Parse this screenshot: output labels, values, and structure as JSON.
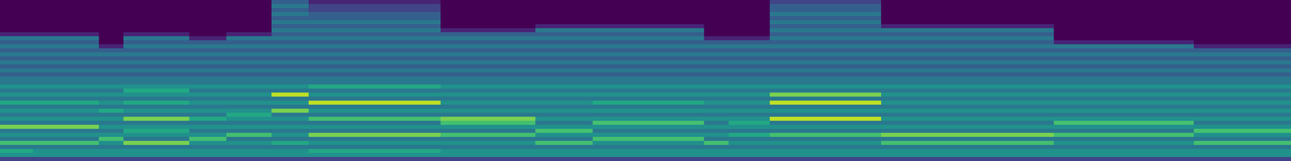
{
  "chart_data": {
    "type": "heatmap",
    "color": "viridis",
    "tick_labels": false,
    "zlim": [
      0,
      10
    ],
    "x": [
      0,
      40,
      120,
      150,
      230,
      275,
      330,
      375,
      535,
      650,
      720,
      855,
      885,
      935,
      1070,
      1280,
      1450,
      1568
    ],
    "cells": [
      [
        0,
        0,
        0,
        0,
        0,
        0,
        0,
        0,
        1,
        4,
        3,
        4,
        3,
        4,
        3,
        4,
        3,
        4,
        3,
        4,
        4,
        5,
        4,
        5,
        4,
        6,
        4,
        5,
        4,
        5,
        4,
        8,
        4,
        5,
        4,
        7,
        4,
        6,
        5,
        2
      ],
      [
        0,
        0,
        0,
        0,
        0,
        0,
        0,
        0,
        1,
        4,
        3,
        4,
        3,
        4,
        3,
        4,
        3,
        4,
        3,
        4,
        4,
        5,
        4,
        5,
        4,
        6,
        4,
        5,
        4,
        5,
        4,
        8,
        4,
        5,
        4,
        7,
        4,
        5,
        5,
        2
      ],
      [
        0,
        0,
        0,
        0,
        0,
        0,
        0,
        0,
        0,
        0,
        0,
        1,
        3,
        4,
        3,
        4,
        3,
        4,
        3,
        4,
        4,
        5,
        4,
        5,
        4,
        5,
        4,
        6,
        4,
        5,
        4,
        5,
        4,
        5,
        7,
        5,
        4,
        5,
        5,
        2
      ],
      [
        0,
        0,
        0,
        0,
        0,
        0,
        0,
        0,
        1,
        4,
        3,
        4,
        3,
        4,
        3,
        4,
        3,
        4,
        3,
        4,
        4,
        5,
        6,
        5,
        4,
        6,
        4,
        5,
        4,
        8,
        4,
        5,
        6,
        5,
        4,
        8,
        4,
        5,
        5,
        2
      ],
      [
        0,
        0,
        0,
        0,
        0,
        0,
        0,
        0,
        0,
        1,
        3,
        4,
        3,
        4,
        3,
        4,
        3,
        4,
        3,
        4,
        4,
        5,
        4,
        5,
        4,
        5,
        4,
        5,
        4,
        6,
        4,
        5,
        4,
        5,
        7,
        5,
        4,
        5,
        5,
        2
      ],
      [
        0,
        0,
        0,
        0,
        0,
        0,
        0,
        0,
        1,
        4,
        3,
        4,
        3,
        4,
        3,
        4,
        3,
        4,
        3,
        4,
        4,
        5,
        4,
        5,
        4,
        5,
        4,
        5,
        6,
        5,
        4,
        5,
        4,
        7,
        4,
        5,
        4,
        5,
        5,
        2
      ],
      [
        3,
        4,
        3,
        4,
        3,
        4,
        3,
        4,
        3,
        4,
        3,
        4,
        3,
        4,
        3,
        4,
        3,
        4,
        3,
        4,
        4,
        5,
        4,
        9,
        4,
        5,
        4,
        8,
        4,
        5,
        4,
        5,
        4,
        5,
        4,
        6,
        4,
        5,
        5,
        2
      ],
      [
        1,
        2,
        2,
        3,
        3,
        4,
        3,
        4,
        3,
        4,
        3,
        4,
        3,
        4,
        3,
        4,
        3,
        4,
        3,
        4,
        4,
        6,
        4,
        5,
        4,
        9,
        4,
        5,
        4,
        7,
        4,
        5,
        4,
        8,
        4,
        5,
        4,
        6,
        5,
        2
      ],
      [
        0,
        0,
        0,
        0,
        0,
        0,
        0,
        1,
        3,
        4,
        3,
        4,
        3,
        4,
        3,
        4,
        3,
        4,
        3,
        4,
        4,
        5,
        4,
        5,
        4,
        5,
        4,
        5,
        4,
        8,
        7,
        5,
        4,
        7,
        4,
        5,
        4,
        5,
        5,
        2
      ],
      [
        0,
        0,
        0,
        0,
        0,
        0,
        1,
        4,
        3,
        4,
        3,
        4,
        3,
        4,
        3,
        4,
        3,
        4,
        3,
        4,
        4,
        5,
        4,
        5,
        4,
        5,
        4,
        5,
        4,
        5,
        4,
        5,
        7,
        5,
        4,
        7,
        4,
        5,
        5,
        2
      ],
      [
        0,
        0,
        0,
        0,
        0,
        0,
        1,
        4,
        3,
        4,
        3,
        4,
        3,
        4,
        3,
        4,
        3,
        4,
        3,
        4,
        4,
        5,
        4,
        5,
        4,
        6,
        4,
        5,
        4,
        5,
        7,
        5,
        4,
        5,
        7,
        5,
        4,
        5,
        5,
        2
      ],
      [
        0,
        0,
        0,
        0,
        0,
        0,
        0,
        0,
        0,
        1,
        3,
        4,
        3,
        4,
        3,
        4,
        3,
        4,
        3,
        4,
        4,
        5,
        4,
        5,
        4,
        5,
        4,
        5,
        4,
        5,
        4,
        5,
        4,
        5,
        4,
        7,
        4,
        5,
        5,
        2
      ],
      [
        0,
        0,
        0,
        0,
        0,
        0,
        0,
        0,
        0,
        1,
        3,
        4,
        3,
        4,
        3,
        4,
        3,
        4,
        3,
        4,
        4,
        5,
        4,
        5,
        4,
        5,
        4,
        5,
        4,
        5,
        6,
        5,
        4,
        6,
        4,
        5,
        4,
        5,
        5,
        2
      ],
      [
        2,
        3,
        3,
        4,
        3,
        4,
        3,
        4,
        3,
        4,
        3,
        4,
        3,
        4,
        3,
        4,
        3,
        4,
        3,
        4,
        4,
        5,
        4,
        8,
        4,
        9,
        4,
        5,
        4,
        9,
        4,
        5,
        4,
        7,
        4,
        5,
        4,
        5,
        5,
        2
      ],
      [
        0,
        0,
        0,
        0,
        0,
        0,
        1,
        4,
        3,
        4,
        3,
        4,
        3,
        4,
        3,
        4,
        3,
        4,
        3,
        4,
        4,
        5,
        4,
        5,
        4,
        5,
        4,
        5,
        4,
        5,
        4,
        5,
        4,
        8,
        4,
        7,
        4,
        5,
        5,
        2
      ],
      [
        0,
        0,
        0,
        0,
        0,
        0,
        0,
        0,
        0,
        0,
        1,
        4,
        3,
        4,
        3,
        4,
        3,
        4,
        3,
        4,
        4,
        5,
        4,
        5,
        4,
        5,
        4,
        5,
        4,
        5,
        7,
        5,
        4,
        7,
        4,
        5,
        4,
        5,
        5,
        2
      ],
      [
        0,
        0,
        0,
        0,
        0,
        0,
        0,
        0,
        0,
        0,
        0,
        1,
        3,
        4,
        3,
        4,
        3,
        4,
        3,
        4,
        4,
        5,
        4,
        5,
        4,
        5,
        4,
        5,
        4,
        5,
        4,
        5,
        7,
        5,
        4,
        7,
        4,
        5,
        5,
        2
      ]
    ]
  }
}
